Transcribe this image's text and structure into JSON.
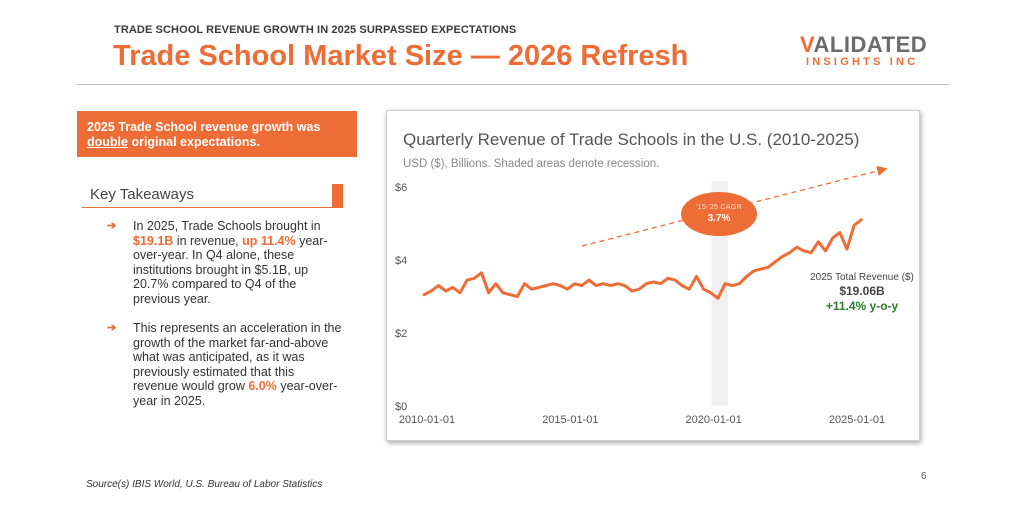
{
  "header": {
    "kicker": "TRADE SCHOOL REVENUE GROWTH IN 2025 SURPASSED EXPECTATIONS",
    "title": "Trade School Market Size — 2026 Refresh",
    "logo_top_first": "V",
    "logo_top_rest": "ALIDATED",
    "logo_bottom": "INSIGHTS INC"
  },
  "callout": {
    "part1": "2025 Trade School revenue growth was",
    "underlined": "double",
    "part2": " original expectations."
  },
  "key_takeaways": {
    "heading": "Key Takeaways",
    "bullet_icon": "arrow-right-icon",
    "bullets": [
      {
        "t1": "In 2025, Trade Schools brought in ",
        "h1": "$19.1B",
        "t2": " in revenue, ",
        "h2": "up 11.4%",
        "t3": " year-over-year. In Q4 alone, these institutions brought in $5.1B, up 20.7% compared to Q4 of the previous year."
      },
      {
        "t1": "This represents an acceleration in the growth of the market far-and-above what was anticipated, as it was previously estimated that this revenue would grow ",
        "h1": "6.0%",
        "t2": " year-over-year in 2025."
      }
    ]
  },
  "footer": {
    "source": "Source(s)  IBIS World, U.S. Bureau of Labor Statistics",
    "page_number": "6"
  },
  "colors": {
    "accent": "#ee6c35",
    "positive": "#2f7a2f",
    "recession_shade": "#f0f0f0"
  },
  "chart_data": {
    "type": "line",
    "title": "Quarterly Revenue of Trade Schools in the U.S. (2010-2025)",
    "subtitle": "USD ($), Billions. Shaded areas denote recession.",
    "y_ticks": [
      "$6",
      "$4",
      "$2",
      "$0"
    ],
    "y_tick_values": [
      6,
      4,
      2,
      0
    ],
    "x_ticks": [
      "2010-01-01",
      "2015-01-01",
      "2020-01-01",
      "2025-01-01"
    ],
    "x_tick_values": [
      2010.0,
      2015.0,
      2020.0,
      2025.0
    ],
    "ylim": [
      0,
      6
    ],
    "xlim": [
      2010.0,
      2025.0
    ],
    "grid": false,
    "recession": {
      "start": 2020.0,
      "end": 2020.5
    },
    "cagr_bubble": {
      "label": "'15-'25 CAGR",
      "value": "3.7%"
    },
    "annotation": {
      "label": "2025 Total Revenue ($)",
      "value": "$19.06B",
      "growth": "+11.4% y-o-y"
    },
    "series": [
      {
        "x": [
          2009.9,
          2010.15,
          2010.4,
          2010.65,
          2010.9,
          2011.15,
          2011.4,
          2011.65,
          2011.9,
          2012.15,
          2012.4,
          2012.65,
          2012.9,
          2013.15,
          2013.4,
          2013.65,
          2013.9,
          2014.15,
          2014.4,
          2014.65,
          2014.9,
          2015.15,
          2015.4,
          2015.65,
          2015.9,
          2016.15,
          2016.4,
          2016.65,
          2016.9,
          2017.15,
          2017.4,
          2017.65,
          2017.9,
          2018.15,
          2018.4,
          2018.65,
          2018.9,
          2019.15,
          2019.4,
          2019.65,
          2019.9,
          2020.15,
          2020.4,
          2020.65,
          2020.9,
          2021.15,
          2021.4,
          2021.65,
          2021.9,
          2022.15,
          2022.4,
          2022.65,
          2022.9,
          2023.15,
          2023.4,
          2023.65,
          2023.9,
          2024.15,
          2024.4,
          2024.65,
          2024.9,
          2025.15
        ],
        "y": [
          3.05,
          3.15,
          3.3,
          3.15,
          3.25,
          3.1,
          3.45,
          3.5,
          3.65,
          3.1,
          3.35,
          3.1,
          3.05,
          3.0,
          3.35,
          3.2,
          3.25,
          3.3,
          3.35,
          3.3,
          3.2,
          3.35,
          3.3,
          3.45,
          3.3,
          3.35,
          3.3,
          3.35,
          3.3,
          3.15,
          3.2,
          3.35,
          3.4,
          3.35,
          3.5,
          3.45,
          3.3,
          3.2,
          3.55,
          3.2,
          3.1,
          2.95,
          3.35,
          3.3,
          3.35,
          3.55,
          3.7,
          3.75,
          3.8,
          3.95,
          4.1,
          4.2,
          4.35,
          4.25,
          4.2,
          4.5,
          4.25,
          4.6,
          4.75,
          4.3,
          4.95,
          5.1
        ]
      }
    ]
  }
}
